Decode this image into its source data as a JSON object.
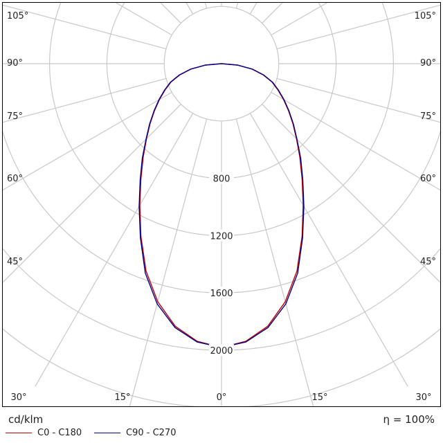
{
  "chart_data": {
    "type": "polar",
    "unit": "cd/klm",
    "efficiency_label": "η = 100%",
    "ring_labels": [
      "800",
      "1200",
      "1600",
      "2000"
    ],
    "ring_values": [
      400,
      800,
      1200,
      1600,
      2000
    ],
    "angle_labels_right": [
      "0°",
      "15°",
      "30°",
      "45°",
      "60°",
      "75°",
      "90°",
      "105°"
    ],
    "angle_labels_left": [
      "15°",
      "30°",
      "45°",
      "60°",
      "75°",
      "90°",
      "105°"
    ],
    "colors": {
      "c0": "#c00000",
      "c90": "#00008b",
      "grid": "#c8c8c8"
    },
    "series": [
      {
        "name": "C0 - C180",
        "angles": [
          0,
          5,
          10,
          15,
          20,
          25,
          30,
          35,
          40,
          45,
          50,
          55,
          60,
          65,
          70,
          75,
          80,
          85,
          90
        ],
        "values": [
          1980,
          1945,
          1860,
          1720,
          1540,
          1330,
          1140,
          980,
          850,
          740,
          650,
          570,
          500,
          435,
          375,
          300,
          215,
          110,
          2
        ]
      },
      {
        "name": "C90 - C270",
        "angles": [
          0,
          5,
          10,
          15,
          20,
          25,
          30,
          35,
          40,
          45,
          50,
          55,
          60,
          65,
          70,
          75,
          80,
          85,
          90
        ],
        "values": [
          1980,
          1950,
          1870,
          1735,
          1555,
          1340,
          1150,
          990,
          860,
          745,
          655,
          575,
          505,
          440,
          380,
          305,
          220,
          112,
          2
        ]
      }
    ]
  }
}
